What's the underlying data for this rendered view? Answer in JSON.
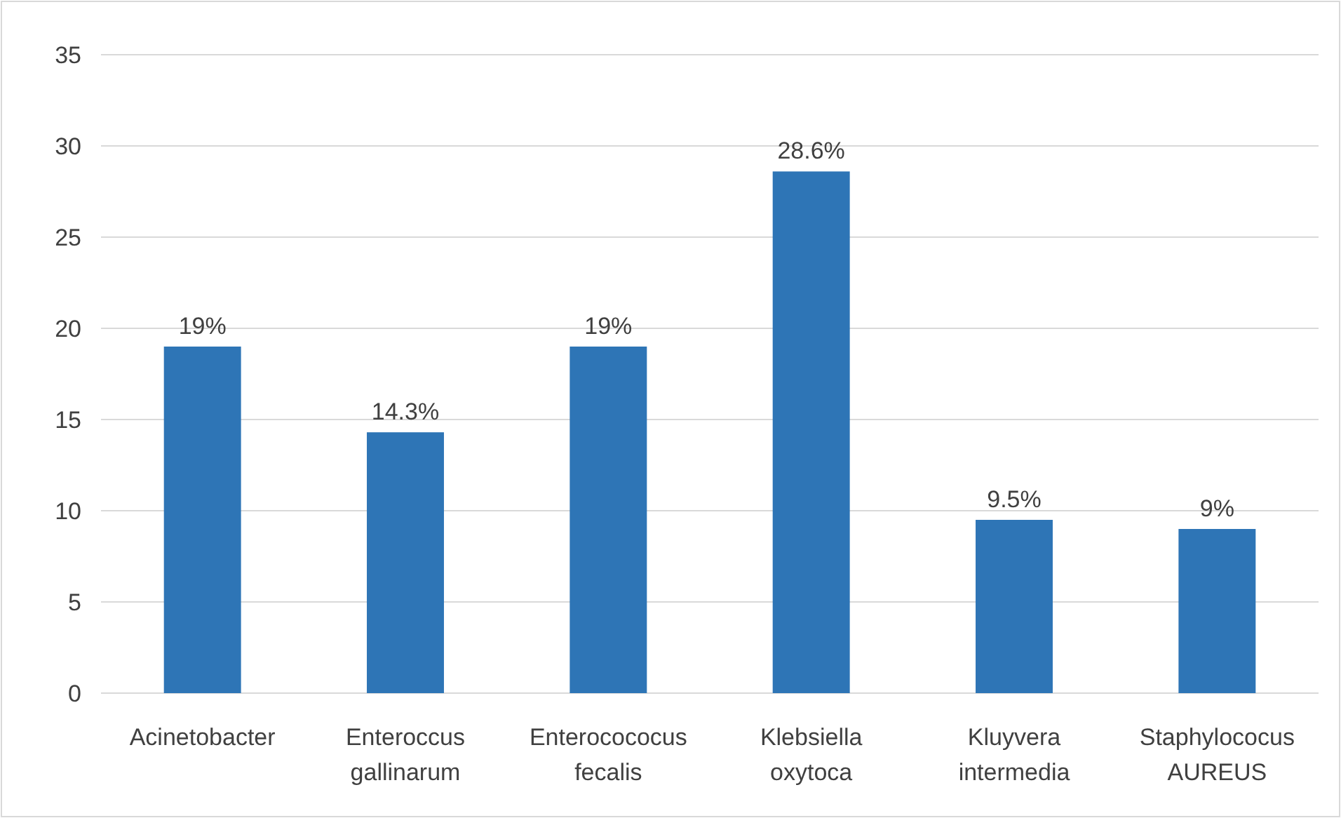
{
  "chart_data": {
    "type": "bar",
    "categories": [
      "Acinetobacter",
      "Enteroccus gallinarum",
      "Enterocococus fecalis",
      "Klebsiella oxytoca",
      "Kluyvera intermedia",
      "Staphylococus AUREUS"
    ],
    "values": [
      19,
      14.3,
      19,
      28.6,
      9.5,
      9
    ],
    "value_labels": [
      "19%",
      "14.3%",
      "19%",
      "28.6%",
      "9.5%",
      "9%"
    ],
    "color": "#2e75b6",
    "ylim": [
      0,
      35
    ],
    "yticks": [
      0,
      5,
      10,
      15,
      20,
      25,
      30,
      35
    ],
    "grid": "y"
  }
}
